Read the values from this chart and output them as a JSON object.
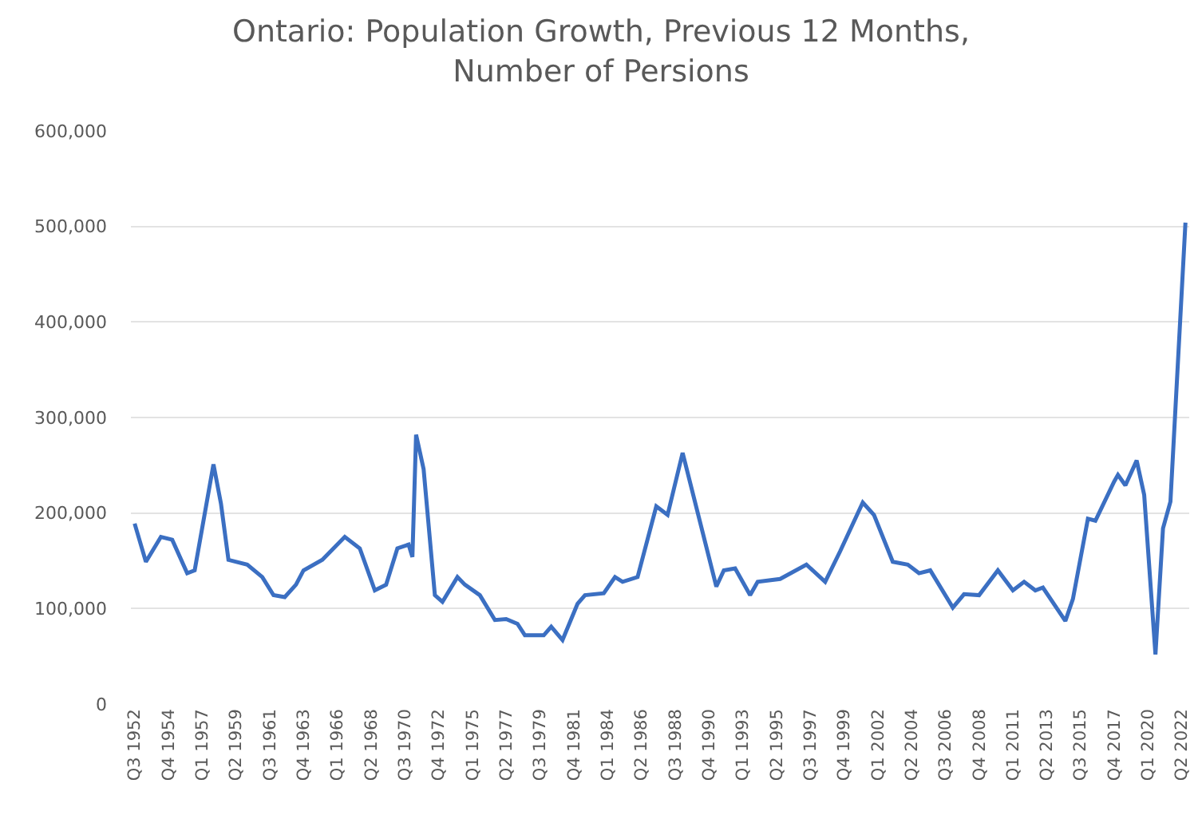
{
  "chart_data": {
    "type": "line",
    "title": "Ontario: Population Growth, Previous 12 Months,\nNumber of Persions",
    "x": [
      "1952-07",
      "1953-04",
      "1954-04",
      "1955-01",
      "1956-01",
      "1956-07",
      "1957-10",
      "1958-04",
      "1958-10",
      "1960-01",
      "1961-01",
      "1961-10",
      "1962-07",
      "1963-04",
      "1963-10",
      "1965-01",
      "1966-07",
      "1967-07",
      "1968-07",
      "1969-04",
      "1970-01",
      "1970-10",
      "1971-01",
      "1971-04",
      "1971-10",
      "1972-07",
      "1973-01",
      "1974-01",
      "1974-07",
      "1975-07",
      "1976-07",
      "1977-04",
      "1978-01",
      "1978-07",
      "1979-10",
      "1980-04",
      "1981-01",
      "1982-01",
      "1982-07",
      "1983-10",
      "1984-07",
      "1985-01",
      "1986-01",
      "1987-04",
      "1988-01",
      "1989-01",
      "1991-04",
      "1991-10",
      "1992-07",
      "1993-07",
      "1994-01",
      "1995-07",
      "1997-04",
      "1998-07",
      "1999-07",
      "2001-01",
      "2001-10",
      "2003-01",
      "2004-01",
      "2004-10",
      "2005-07",
      "2007-01",
      "2007-10",
      "2008-10",
      "2010-01",
      "2011-01",
      "2011-10",
      "2012-07",
      "2013-01",
      "2014-07",
      "2015-01",
      "2016-01",
      "2016-07",
      "2017-10",
      "2018-01",
      "2018-07",
      "2019-04",
      "2019-10",
      "2020-07",
      "2021-01",
      "2021-07",
      "2022-07"
    ],
    "series": [
      {
        "color": "#3b6fc2",
        "values": [
          189000,
          149000,
          175000,
          172000,
          137000,
          140000,
          251000,
          210000,
          151000,
          146000,
          133000,
          114000,
          112000,
          125000,
          140000,
          151000,
          175000,
          163000,
          119000,
          125000,
          163000,
          167000,
          154000,
          282000,
          246000,
          114000,
          107000,
          133000,
          125000,
          114000,
          88000,
          89000,
          84000,
          72000,
          72000,
          81000,
          67000,
          105000,
          114000,
          116000,
          133000,
          128000,
          133000,
          207000,
          198000,
          263000,
          123000,
          140000,
          142000,
          114000,
          128000,
          131000,
          146000,
          128000,
          160000,
          211000,
          198000,
          149000,
          146000,
          137000,
          140000,
          101000,
          115000,
          114000,
          140000,
          119000,
          128000,
          119000,
          122000,
          87000,
          110000,
          194000,
          192000,
          233000,
          240000,
          229000,
          255000,
          219000,
          52000,
          184000,
          212000,
          504000
        ]
      }
    ],
    "xlim": [
      "1952-04",
      "2022-10"
    ],
    "xticks": [
      {
        "value": "1952-07",
        "label": "Q3 1952"
      },
      {
        "value": "1954-10",
        "label": "Q4 1954"
      },
      {
        "value": "1957-01",
        "label": "Q1 1957"
      },
      {
        "value": "1959-04",
        "label": "Q2 1959"
      },
      {
        "value": "1961-07",
        "label": "Q3 1961"
      },
      {
        "value": "1963-10",
        "label": "Q4 1963"
      },
      {
        "value": "1966-01",
        "label": "Q1 1966"
      },
      {
        "value": "1968-04",
        "label": "Q2 1968"
      },
      {
        "value": "1970-07",
        "label": "Q3 1970"
      },
      {
        "value": "1972-10",
        "label": "Q4 1972"
      },
      {
        "value": "1975-01",
        "label": "Q1 1975"
      },
      {
        "value": "1977-04",
        "label": "Q2 1977"
      },
      {
        "value": "1979-07",
        "label": "Q3 1979"
      },
      {
        "value": "1981-10",
        "label": "Q4 1981"
      },
      {
        "value": "1984-01",
        "label": "Q1 1984"
      },
      {
        "value": "1986-04",
        "label": "Q2 1986"
      },
      {
        "value": "1988-07",
        "label": "Q3 1988"
      },
      {
        "value": "1990-10",
        "label": "Q4 1990"
      },
      {
        "value": "1993-01",
        "label": "Q1 1993"
      },
      {
        "value": "1995-04",
        "label": "Q2 1995"
      },
      {
        "value": "1997-07",
        "label": "Q3 1997"
      },
      {
        "value": "1999-10",
        "label": "Q4 1999"
      },
      {
        "value": "2002-01",
        "label": "Q1 2002"
      },
      {
        "value": "2004-04",
        "label": "Q2 2004"
      },
      {
        "value": "2006-07",
        "label": "Q3 2006"
      },
      {
        "value": "2008-10",
        "label": "Q4 2008"
      },
      {
        "value": "2011-01",
        "label": "Q1 2011"
      },
      {
        "value": "2013-04",
        "label": "Q2 2013"
      },
      {
        "value": "2015-07",
        "label": "Q3 2015"
      },
      {
        "value": "2017-10",
        "label": "Q4 2017"
      },
      {
        "value": "2020-01",
        "label": "Q1 2020"
      },
      {
        "value": "2022-04",
        "label": "Q2 2022"
      }
    ],
    "ylim": [
      0,
      600000
    ],
    "yticks": [
      {
        "value": 0,
        "label": "0"
      },
      {
        "value": 100000,
        "label": "100,000"
      },
      {
        "value": 200000,
        "label": "200,000"
      },
      {
        "value": 300000,
        "label": "300,000"
      },
      {
        "value": 400000,
        "label": "400,000"
      },
      {
        "value": 500000,
        "label": "500,000"
      },
      {
        "value": 600000,
        "label": "600,000"
      }
    ],
    "grid": "y",
    "marker": "none",
    "line_style": "solid"
  }
}
